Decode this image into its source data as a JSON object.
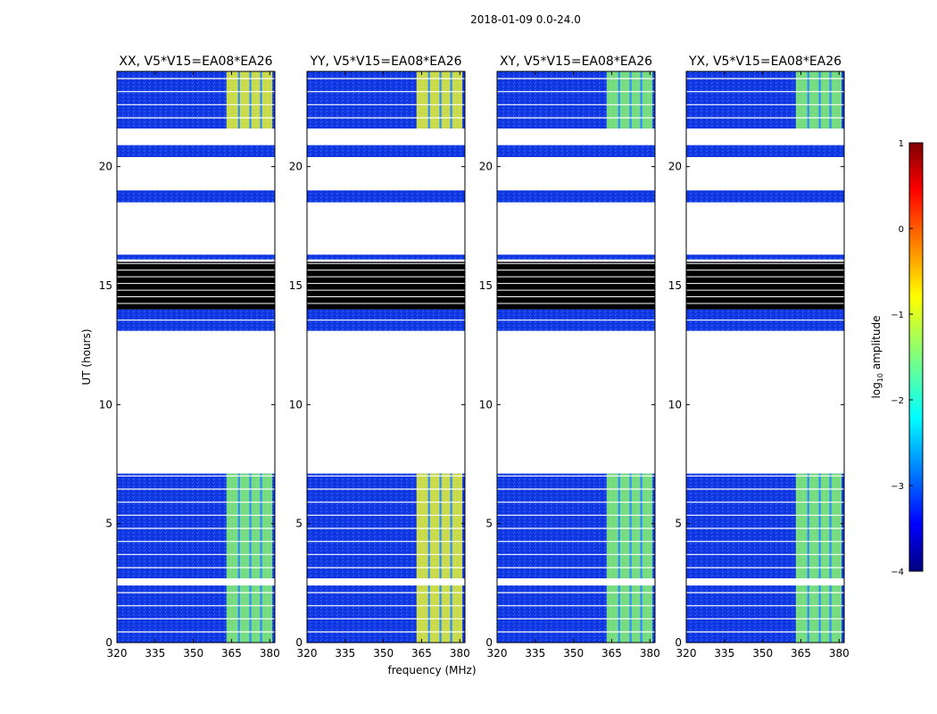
{
  "chart_data": {
    "type": "heatmap",
    "title": "2018-01-09 0.0-24.0",
    "xlabel": "frequency (MHz)",
    "ylabel": "UT (hours)",
    "xlim": [
      320,
      382
    ],
    "ylim": [
      0,
      24
    ],
    "xticks": [
      320,
      335,
      350,
      365,
      380
    ],
    "yticks": [
      0,
      5,
      10,
      15,
      20
    ],
    "panels": [
      {
        "title": "XX, V5*V15=EA08*EA26",
        "bright_rows": [
          "high",
          "mid"
        ]
      },
      {
        "title": "YY, V5*V15=EA08*EA26",
        "bright_rows": [
          "high",
          "high"
        ]
      },
      {
        "title": "XY, V5*V15=EA08*EA26",
        "bright_rows": [
          "mid",
          "mid"
        ]
      },
      {
        "title": "YX, V5*V15=EA08*EA26",
        "bright_rows": [
          "mid",
          "mid"
        ]
      }
    ],
    "colorbar": {
      "label": "log10 amplitude",
      "label_main": "log",
      "label_sub": "10",
      "label_rest": " amplitude",
      "range": [
        -4,
        1
      ],
      "ticks": [
        "1",
        "0",
        "−1",
        "−2",
        "−3",
        "−4"
      ],
      "colormap": "jet"
    },
    "time_segments_hours": [
      {
        "from": 0.0,
        "to": 2.4,
        "state": "data"
      },
      {
        "from": 2.7,
        "to": 7.1,
        "state": "data"
      },
      {
        "from": 13.1,
        "to": 14.0,
        "state": "data"
      },
      {
        "from": 14.0,
        "to": 16.0,
        "state": "flagged"
      },
      {
        "from": 16.1,
        "to": 16.3,
        "state": "data"
      },
      {
        "from": 18.5,
        "to": 19.0,
        "state": "data"
      },
      {
        "from": 20.4,
        "to": 20.9,
        "state": "data"
      },
      {
        "from": 21.6,
        "to": 24.0,
        "state": "data"
      }
    ],
    "bright_band_mhz": [
      363,
      381
    ],
    "bright_channel_gaps_mhz": [
      [
        367.5,
        368.3
      ],
      [
        372.0,
        372.8
      ],
      [
        376.2,
        377.0
      ]
    ]
  }
}
